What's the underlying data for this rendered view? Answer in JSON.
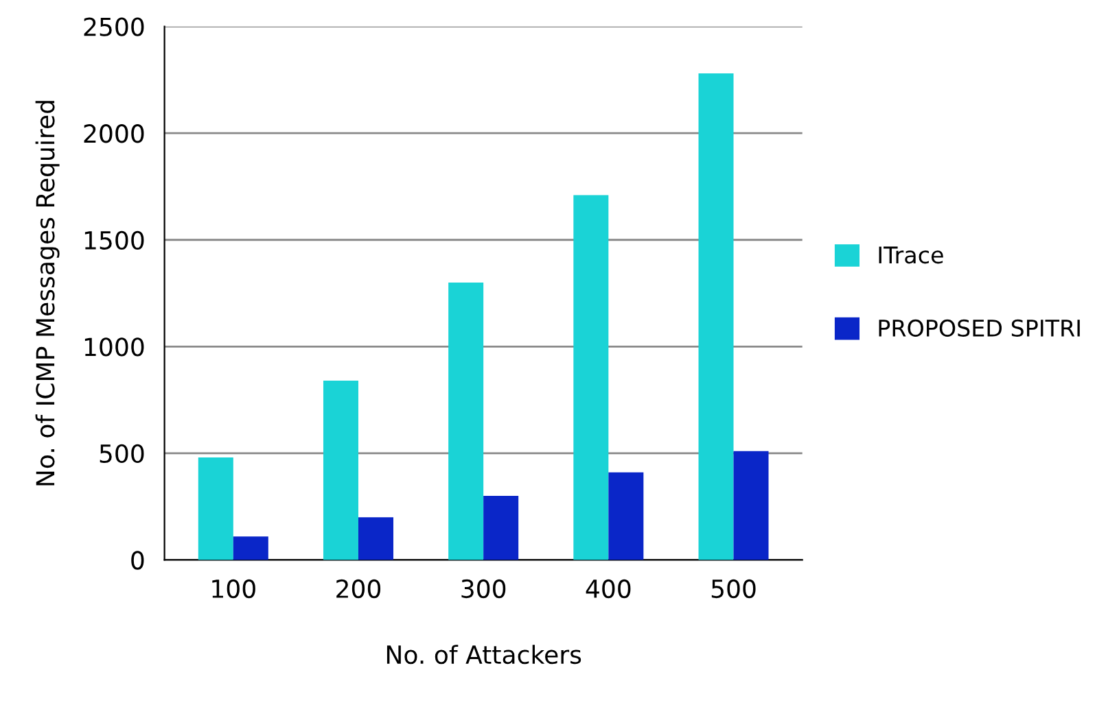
{
  "chart_data": {
    "type": "bar",
    "xlabel": "No. of Attackers",
    "ylabel": "No. of ICMP Messages Required",
    "categories": [
      "100",
      "200",
      "300",
      "400",
      "500"
    ],
    "series": [
      {
        "name": "ITrace",
        "color": "#1ad3d6",
        "values": [
          480,
          840,
          1300,
          1710,
          2280
        ]
      },
      {
        "name": "PROPOSED SPITRI",
        "color": "#0a26c8",
        "values": [
          110,
          200,
          300,
          410,
          510
        ]
      }
    ],
    "ylim": [
      0,
      2500
    ],
    "yticks": [
      0,
      500,
      1000,
      1500,
      2000,
      2500
    ],
    "grid": "y",
    "legend": "right"
  }
}
